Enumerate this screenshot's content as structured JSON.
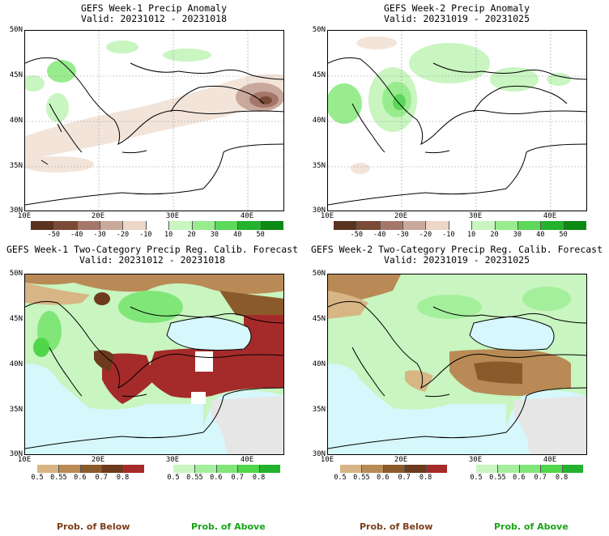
{
  "panels": [
    {
      "title": "GEFS Week-1 Precip Anomaly",
      "valid": "Valid: 20231012 - 20231018"
    },
    {
      "title": "GEFS Week-2 Precip Anomaly",
      "valid": "Valid: 20231019 - 20231025"
    },
    {
      "title": "GEFS Week-1 Two-Category Precip Reg. Calib. Forecast",
      "valid": "Valid: 20231012 - 20231018"
    },
    {
      "title": "GEFS Week-2 Two-Category Precip Reg. Calib. Forecast",
      "valid": "Valid: 20231019 - 20231025"
    }
  ],
  "axes": {
    "lat_labels": [
      "50N",
      "45N",
      "40N",
      "35N",
      "30N"
    ],
    "lon_labels": [
      "10E",
      "20E",
      "30E",
      "40E"
    ]
  },
  "anomaly_colorbar": {
    "labels": [
      "-50",
      "-40",
      "-30",
      "-20",
      "-10",
      "10",
      "20",
      "30",
      "40",
      "50"
    ],
    "colors": [
      "#5a3320",
      "#7b4a36",
      "#a5776a",
      "#c9a99c",
      "#ecd6c8",
      "#ffffff",
      "#c8f5c0",
      "#98ec8e",
      "#5cd85a",
      "#22b22c",
      "#0b8a14"
    ]
  },
  "prob_below": {
    "labels": [
      "0.5",
      "0.55",
      "0.6",
      "0.7",
      "0.8"
    ],
    "colors": [
      "#d8b585",
      "#b98a55",
      "#8b5a2b",
      "#6e3a1e",
      "#a52a2a"
    ],
    "caption": "Prob. of Below",
    "caption_color": "#7b3f1a"
  },
  "prob_above": {
    "labels": [
      "0.5",
      "0.55",
      "0.6",
      "0.7",
      "0.8"
    ],
    "colors": [
      "#c8f5c0",
      "#a4ef9c",
      "#80e678",
      "#50d64a",
      "#22b22c"
    ],
    "caption": "Prob. of Above",
    "caption_color": "#18a318"
  },
  "colors": {
    "sea": "#d6f7fb",
    "nodata": "#e6e6e6",
    "land_outline": "#000000"
  }
}
